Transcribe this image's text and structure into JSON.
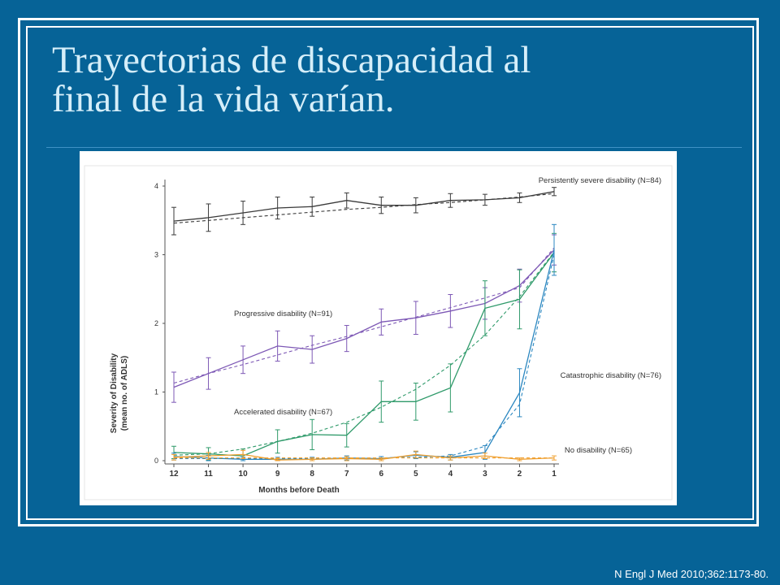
{
  "slide": {
    "title_line1": "Trayectorias de discapacidad al",
    "title_line2": "final de la vida varían.",
    "citation": "N Engl J Med 2010;362:1173-80."
  },
  "colors": {
    "background": "#066397",
    "title_text": "#d5eef9",
    "persistently_severe": "#3a3a3a",
    "progressive": "#7d58b5",
    "accelerated": "#2f9a6a",
    "catastrophic": "#2b87c0",
    "no_disability": "#f0a030"
  },
  "chart_data": {
    "type": "line",
    "xlabel": "Months before Death",
    "ylabel_line1": "Severity of Disability",
    "ylabel_line2": "(mean no. of ADLS)",
    "x": [
      12,
      11,
      10,
      9,
      8,
      7,
      6,
      5,
      4,
      3,
      2,
      1
    ],
    "xlim": [
      12,
      1
    ],
    "ylim": [
      0,
      4
    ],
    "yticks": [
      0,
      1,
      2,
      3,
      4
    ],
    "grid": false,
    "series": [
      {
        "name": "Persistently severe disability (N=84)",
        "color_key": "persistently_severe",
        "observed": [
          3.49,
          3.54,
          3.61,
          3.68,
          3.7,
          3.79,
          3.72,
          3.72,
          3.79,
          3.8,
          3.83,
          3.92
        ],
        "error": [
          0.2,
          0.2,
          0.17,
          0.16,
          0.14,
          0.11,
          0.12,
          0.11,
          0.1,
          0.08,
          0.07,
          0.06
        ],
        "fitted": [
          3.46,
          3.5,
          3.54,
          3.58,
          3.62,
          3.66,
          3.69,
          3.73,
          3.76,
          3.8,
          3.84,
          3.89
        ]
      },
      {
        "name": "Progressive disability (N=91)",
        "color_key": "progressive",
        "observed": [
          1.07,
          1.27,
          1.47,
          1.67,
          1.62,
          1.78,
          2.02,
          2.08,
          2.18,
          2.29,
          2.55,
          3.07
        ],
        "error": [
          0.22,
          0.23,
          0.2,
          0.22,
          0.2,
          0.19,
          0.19,
          0.24,
          0.24,
          0.23,
          0.24,
          0.22
        ],
        "fitted": [
          1.13,
          1.27,
          1.4,
          1.54,
          1.68,
          1.81,
          1.95,
          2.09,
          2.23,
          2.37,
          2.52,
          3.1
        ]
      },
      {
        "name": "Accelerated disability (N=67)",
        "color_key": "accelerated",
        "observed": [
          0.12,
          0.1,
          0.07,
          0.28,
          0.38,
          0.37,
          0.86,
          0.86,
          1.06,
          2.22,
          2.35,
          3.03
        ],
        "error": [
          0.09,
          0.09,
          0.1,
          0.17,
          0.22,
          0.17,
          0.3,
          0.27,
          0.35,
          0.4,
          0.43,
          0.28
        ],
        "fitted": [
          0.08,
          0.1,
          0.17,
          0.28,
          0.4,
          0.56,
          0.78,
          1.04,
          1.39,
          1.83,
          2.39,
          3.04
        ]
      },
      {
        "name": "Catastrophic disability (N=76)",
        "color_key": "catastrophic",
        "observed": [
          0.06,
          0.04,
          0.02,
          0.02,
          0.02,
          0.04,
          0.03,
          0.08,
          0.05,
          0.12,
          0.99,
          3.07
        ],
        "error": [
          0.05,
          0.04,
          0.03,
          0.03,
          0.03,
          0.03,
          0.03,
          0.05,
          0.04,
          0.1,
          0.35,
          0.37
        ],
        "fitted": [
          0.03,
          0.03,
          0.03,
          0.03,
          0.03,
          0.03,
          0.04,
          0.05,
          0.07,
          0.21,
          0.82,
          3.0
        ]
      },
      {
        "name": "No disability (N=65)",
        "color_key": "no_disability",
        "observed": [
          0.05,
          0.07,
          0.09,
          0.01,
          0.02,
          0.03,
          0.02,
          0.09,
          0.04,
          0.07,
          0.02,
          0.04
        ],
        "error": [
          0.04,
          0.05,
          0.06,
          0.02,
          0.02,
          0.03,
          0.02,
          0.05,
          0.03,
          0.04,
          0.02,
          0.03
        ],
        "fitted": [
          0.04,
          0.04,
          0.04,
          0.04,
          0.04,
          0.04,
          0.04,
          0.04,
          0.04,
          0.04,
          0.04,
          0.04
        ]
      }
    ]
  }
}
